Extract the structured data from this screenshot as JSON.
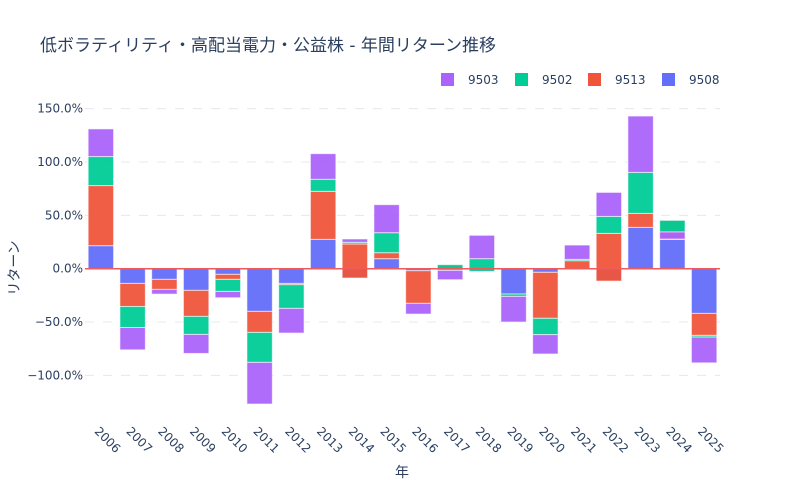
{
  "chart_data": {
    "type": "bar",
    "barmode": "stack",
    "title": "低ボラティリティ・高配当電力・公益株 - 年間リターン推移",
    "xlabel": "年",
    "ylabel": "リターン",
    "ylim": [
      -140,
      155
    ],
    "yticks": [
      150,
      100,
      50,
      0,
      -50,
      -100
    ],
    "ytick_labels": [
      "150.0%",
      "100.0%",
      "50.0%",
      "0.0%",
      "−50.0%",
      "−100.0%"
    ],
    "grid": true,
    "legend_position": "top-right",
    "categories": [
      "2006",
      "2007",
      "2008",
      "2009",
      "2010",
      "2011",
      "2012",
      "2013",
      "2014",
      "2015",
      "2016",
      "2017",
      "2018",
      "2019",
      "2020",
      "2021",
      "2022",
      "2023",
      "2024",
      "2025"
    ],
    "series": [
      {
        "name": "9508",
        "color": "#636efa",
        "values": [
          21.6,
          -13.8,
          -10.0,
          -20.3,
          -5.3,
          -40.0,
          -13.8,
          27.5,
          -8.75,
          9.4,
          -1.9,
          0,
          -2.5,
          -23.75,
          -3.4,
          0,
          -11.6,
          38.75,
          27.5,
          -41.9
        ]
      },
      {
        "name": "9513",
        "color": "#ef553b",
        "values": [
          56.3,
          -21.6,
          -9.4,
          -24.4,
          -4.7,
          -19.7,
          -1.2,
          45.0,
          31.9,
          5.6,
          -30.6,
          3.75,
          0,
          0,
          -43.1,
          7.5,
          44.7,
          13.1,
          17.8,
          -20.6
        ]
      },
      {
        "name": "9502",
        "color": "#00cc96",
        "values": [
          27.2,
          -19.7,
          0,
          -16.9,
          -11.3,
          -28.1,
          -22.2,
          11.3,
          1.6,
          18.75,
          0,
          -5.3,
          11.9,
          -2.2,
          -15.3,
          1.25,
          15.9,
          38.4,
          -10.9,
          -1.6
        ]
      },
      {
        "name": "9503",
        "color": "#ab63fa",
        "values": [
          25.9,
          -20.9,
          -4.4,
          -17.8,
          -5.9,
          -39.0,
          -23.1,
          24.0,
          3.1,
          26.25,
          -10.0,
          -8.75,
          21.9,
          -24.0,
          -18.1,
          13.4,
          22.5,
          52.8,
          -6.6,
          -24.1
        ]
      }
    ],
    "legend_order": [
      "9503",
      "9502",
      "9513",
      "9508"
    ]
  }
}
